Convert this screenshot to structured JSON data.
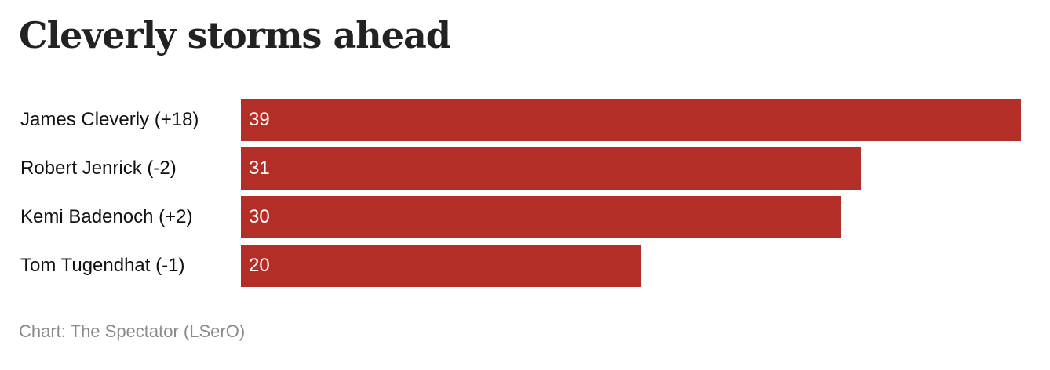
{
  "colors": {
    "bar": "#b32e27"
  },
  "chart_data": {
    "type": "bar",
    "orientation": "horizontal",
    "title": "Cleverly storms ahead",
    "categories": [
      "James Cleverly (+18)",
      "Robert Jenrick (-2)",
      "Kemi Badenoch (+2)",
      "Tom Tugendhat (-1)"
    ],
    "values": [
      39,
      31,
      30,
      20
    ],
    "data_labels": [
      "39",
      "31",
      "30",
      "20"
    ],
    "xlim": [
      0,
      39
    ],
    "grid": false,
    "source": "Chart: The Spectator (LSerO)"
  }
}
